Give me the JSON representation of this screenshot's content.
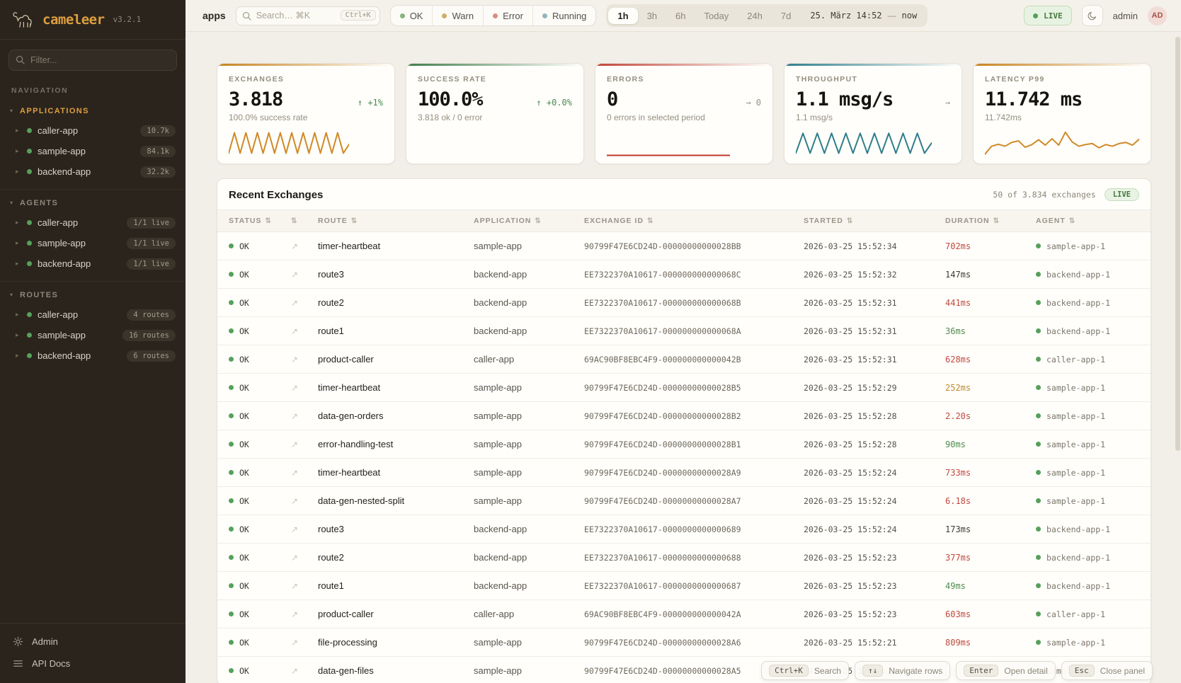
{
  "sidebar": {
    "logo_text": "cameleer",
    "version": "v3.2.1",
    "filter_placeholder": "Filter...",
    "nav_label": "NAVIGATION",
    "sections": [
      {
        "label": "APPLICATIONS",
        "accent": true,
        "items": [
          {
            "name": "caller-app",
            "badge": "10.7k"
          },
          {
            "name": "sample-app",
            "badge": "84.1k"
          },
          {
            "name": "backend-app",
            "badge": "32.2k"
          }
        ]
      },
      {
        "label": "AGENTS",
        "accent": false,
        "items": [
          {
            "name": "caller-app",
            "badge": "1/1 live"
          },
          {
            "name": "sample-app",
            "badge": "1/1 live"
          },
          {
            "name": "backend-app",
            "badge": "1/1 live"
          }
        ]
      },
      {
        "label": "ROUTES",
        "accent": false,
        "items": [
          {
            "name": "caller-app",
            "badge": "4 routes"
          },
          {
            "name": "sample-app",
            "badge": "16 routes"
          },
          {
            "name": "backend-app",
            "badge": "6 routes"
          }
        ]
      }
    ],
    "footer": [
      {
        "label": "Admin",
        "icon": "gear-icon"
      },
      {
        "label": "API Docs",
        "icon": "list-icon"
      }
    ]
  },
  "header": {
    "context_label": "apps",
    "search_placeholder": "Search… ⌘K",
    "search_kbd": "Ctrl+K",
    "status_filters": [
      {
        "label": "OK",
        "color": "#87b37e"
      },
      {
        "label": "Warn",
        "color": "#d2ac63"
      },
      {
        "label": "Error",
        "color": "#d98d82"
      },
      {
        "label": "Running",
        "color": "#8fb7bc"
      }
    ],
    "ranges": [
      "1h",
      "3h",
      "6h",
      "Today",
      "24h",
      "7d"
    ],
    "active_range": "1h",
    "range_from": "25. März 14:52",
    "range_sep": "—",
    "range_to": "now",
    "live_label": "LIVE",
    "user": "admin",
    "avatar": "AD"
  },
  "cards": [
    {
      "label": "EXCHANGES",
      "value": "3.818",
      "delta": "↑ +1%",
      "delta_color": "#4a8a4f",
      "sub": "100.0% success rate",
      "accent": "#c8821f",
      "spark": {
        "color": "#d08a28",
        "span": 0.78,
        "values": [
          88,
          12,
          88,
          12,
          88,
          12,
          88,
          12,
          88,
          12,
          88,
          12,
          88,
          12,
          88,
          12,
          88,
          12,
          88,
          12,
          88,
          55
        ]
      }
    },
    {
      "label": "SUCCESS RATE",
      "value": "100.0%",
      "delta": "↑ +0.0%",
      "delta_color": "#4a8a4f",
      "sub": "3.818 ok / 0 error",
      "accent": "#3e7d4a",
      "spark": null
    },
    {
      "label": "ERRORS",
      "value": "0",
      "delta": "→ 0",
      "delta_color": "#9a9488",
      "sub": "0 errors in selected period",
      "accent": "#c24438",
      "spark": {
        "color": "#c0392b",
        "span": 0.8,
        "values": [
          96,
          96
        ]
      }
    },
    {
      "label": "THROUGHPUT",
      "value": "1.1 msg/s",
      "delta": "→",
      "delta_color": "#9a9488",
      "sub": "1.1 msg/s",
      "accent": "#2e7d8a",
      "spark": {
        "color": "#2e7d8a",
        "span": 0.88,
        "values": [
          88,
          14,
          88,
          14,
          88,
          14,
          88,
          14,
          88,
          14,
          88,
          14,
          88,
          14,
          88,
          14,
          88,
          14,
          88,
          50
        ]
      }
    },
    {
      "label": "LATENCY P99",
      "value": "11.742 ms",
      "delta": "",
      "delta_color": "#9a9488",
      "sub": "11.742ms",
      "accent": "#c8821f",
      "spark": {
        "color": "#d08a28",
        "span": 1.0,
        "values": [
          92,
          62,
          55,
          62,
          48,
          42,
          66,
          56,
          38,
          58,
          34,
          58,
          10,
          46,
          62,
          56,
          52,
          68,
          56,
          62,
          52,
          48,
          58,
          36
        ]
      }
    }
  ],
  "table": {
    "title": "Recent Exchanges",
    "summary": "50 of 3.834 exchanges",
    "live_label": "LIVE",
    "columns": [
      "STATUS",
      "",
      "ROUTE",
      "APPLICATION",
      "EXCHANGE ID",
      "STARTED",
      "DURATION",
      "AGENT"
    ],
    "duration_colors": {
      "red": "#c0493f",
      "green": "#4f8b4f",
      "amber": "#c08a2e",
      "neutral": "#3f3b33"
    },
    "rows": [
      {
        "status": "OK",
        "route": "timer-heartbeat",
        "app": "sample-app",
        "exchange_id": "90799F47E6CD24D-00000000000028BB",
        "started": "2026-03-25 15:52:34",
        "duration": "702ms",
        "duration_color": "red",
        "agent": "sample-app-1"
      },
      {
        "status": "OK",
        "route": "route3",
        "app": "backend-app",
        "exchange_id": "EE7322370A10617-000000000000068C",
        "started": "2026-03-25 15:52:32",
        "duration": "147ms",
        "duration_color": "neutral",
        "agent": "backend-app-1"
      },
      {
        "status": "OK",
        "route": "route2",
        "app": "backend-app",
        "exchange_id": "EE7322370A10617-000000000000068B",
        "started": "2026-03-25 15:52:31",
        "duration": "441ms",
        "duration_color": "red",
        "agent": "backend-app-1"
      },
      {
        "status": "OK",
        "route": "route1",
        "app": "backend-app",
        "exchange_id": "EE7322370A10617-000000000000068A",
        "started": "2026-03-25 15:52:31",
        "duration": "36ms",
        "duration_color": "green",
        "agent": "backend-app-1"
      },
      {
        "status": "OK",
        "route": "product-caller",
        "app": "caller-app",
        "exchange_id": "69AC90BF8EBC4F9-000000000000042B",
        "started": "2026-03-25 15:52:31",
        "duration": "628ms",
        "duration_color": "red",
        "agent": "caller-app-1"
      },
      {
        "status": "OK",
        "route": "timer-heartbeat",
        "app": "sample-app",
        "exchange_id": "90799F47E6CD24D-00000000000028B5",
        "started": "2026-03-25 15:52:29",
        "duration": "252ms",
        "duration_color": "amber",
        "agent": "sample-app-1"
      },
      {
        "status": "OK",
        "route": "data-gen-orders",
        "app": "sample-app",
        "exchange_id": "90799F47E6CD24D-00000000000028B2",
        "started": "2026-03-25 15:52:28",
        "duration": "2.20s",
        "duration_color": "red",
        "agent": "sample-app-1"
      },
      {
        "status": "OK",
        "route": "error-handling-test",
        "app": "sample-app",
        "exchange_id": "90799F47E6CD24D-00000000000028B1",
        "started": "2026-03-25 15:52:28",
        "duration": "90ms",
        "duration_color": "green",
        "agent": "sample-app-1"
      },
      {
        "status": "OK",
        "route": "timer-heartbeat",
        "app": "sample-app",
        "exchange_id": "90799F47E6CD24D-00000000000028A9",
        "started": "2026-03-25 15:52:24",
        "duration": "733ms",
        "duration_color": "red",
        "agent": "sample-app-1"
      },
      {
        "status": "OK",
        "route": "data-gen-nested-split",
        "app": "sample-app",
        "exchange_id": "90799F47E6CD24D-00000000000028A7",
        "started": "2026-03-25 15:52:24",
        "duration": "6.18s",
        "duration_color": "red",
        "agent": "sample-app-1"
      },
      {
        "status": "OK",
        "route": "route3",
        "app": "backend-app",
        "exchange_id": "EE7322370A10617-0000000000000689",
        "started": "2026-03-25 15:52:24",
        "duration": "173ms",
        "duration_color": "neutral",
        "agent": "backend-app-1"
      },
      {
        "status": "OK",
        "route": "route2",
        "app": "backend-app",
        "exchange_id": "EE7322370A10617-0000000000000688",
        "started": "2026-03-25 15:52:23",
        "duration": "377ms",
        "duration_color": "red",
        "agent": "backend-app-1"
      },
      {
        "status": "OK",
        "route": "route1",
        "app": "backend-app",
        "exchange_id": "EE7322370A10617-0000000000000687",
        "started": "2026-03-25 15:52:23",
        "duration": "49ms",
        "duration_color": "green",
        "agent": "backend-app-1"
      },
      {
        "status": "OK",
        "route": "product-caller",
        "app": "caller-app",
        "exchange_id": "69AC90BF8EBC4F9-000000000000042A",
        "started": "2026-03-25 15:52:23",
        "duration": "603ms",
        "duration_color": "red",
        "agent": "caller-app-1"
      },
      {
        "status": "OK",
        "route": "file-processing",
        "app": "sample-app",
        "exchange_id": "90799F47E6CD24D-00000000000028A6",
        "started": "2026-03-25 15:52:21",
        "duration": "809ms",
        "duration_color": "red",
        "agent": "sample-app-1"
      },
      {
        "status": "OK",
        "route": "data-gen-files",
        "app": "sample-app",
        "exchange_id": "90799F47E6CD24D-00000000000028A5",
        "started": "2026-03-25 15:52:21",
        "duration": "",
        "duration_color": "neutral",
        "agent": "sample-app-1"
      }
    ]
  },
  "hints": [
    {
      "key": "Ctrl+K",
      "label": "Search"
    },
    {
      "key": "↑↓",
      "label": "Navigate rows"
    },
    {
      "key": "Enter",
      "label": "Open detail"
    },
    {
      "key": "Esc",
      "label": "Close panel"
    }
  ],
  "glyphs": {
    "sort": "⇅",
    "trace": "↗",
    "chevron": "▸",
    "caret": "▾"
  }
}
